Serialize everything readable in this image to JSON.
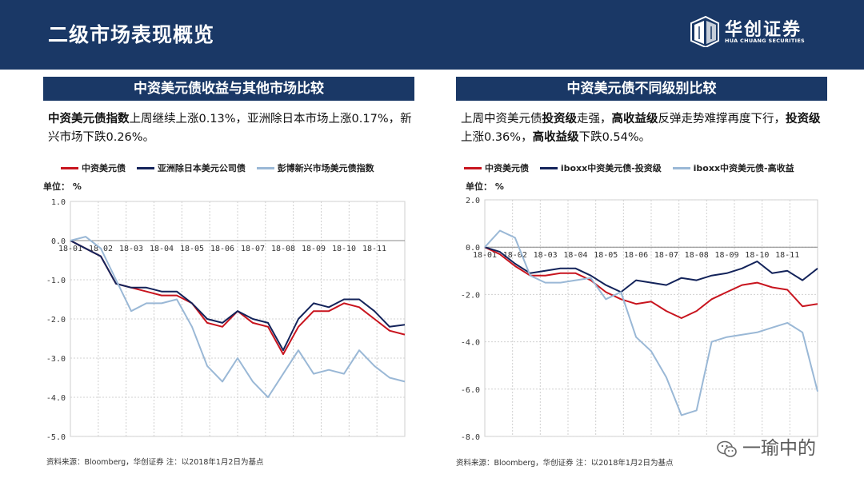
{
  "header": {
    "title": "二级市场表现概览",
    "logo_name": "华创证券",
    "logo_sub": "HUA CHUANG SECURITIES"
  },
  "left_panel": {
    "banner": "中资美元债收益与其他市场比较",
    "desc_b1": "中资美元债指数",
    "desc_t1": "上周继续上涨0.13%，亚洲除日本市场上涨0.17%，新兴市场下跌0.26%。",
    "unit": "单位： %",
    "source": "资料来源：Bloomberg，华创证券   注：以2018年1月2日为基点"
  },
  "right_panel": {
    "banner": "中资美元债不同级别比较",
    "desc_t1": "上周中资美元债",
    "desc_b1": "投资级",
    "desc_t2": "走强，",
    "desc_b2": "高收益级",
    "desc_t3": "反弹走势难撑再度下行，",
    "desc_b3": "投资级",
    "desc_t4": "上涨0.36%，",
    "desc_b4": "高收益级",
    "desc_t5": "下跌0.54%。",
    "unit": "单位： %",
    "source": "资料来源：Bloomberg，华创证券   注：以2018年1月2日为基点"
  },
  "watermark": "一瑜中的",
  "colors": {
    "navy": "#1a3866",
    "red": "#c8141e",
    "dark_navy": "#13235a",
    "light_blue": "#9ab8d6",
    "grid": "#d0d0d0"
  },
  "chart_data": [
    {
      "type": "line",
      "title": "中资美元债收益与其他市场比较",
      "ylabel": "单位： %",
      "ylim": [
        -5.0,
        1.0
      ],
      "yticks": [
        "1.0",
        "0.0",
        "-1.0",
        "-2.0",
        "-3.0",
        "-4.0",
        "-5.0"
      ],
      "xticks": [
        "18-01",
        "18-02",
        "18-03",
        "18-04",
        "18-05",
        "18-06",
        "18-07",
        "18-08",
        "18-09",
        "18-10",
        "18-11"
      ],
      "grid": true,
      "legend": "top",
      "x": [
        0,
        0.5,
        1.0,
        1.5,
        2.0,
        2.5,
        3.0,
        3.5,
        4.0,
        4.5,
        5.0,
        5.5,
        6.0,
        6.5,
        7.0,
        7.5,
        8.0,
        8.5,
        9.0,
        9.5,
        10.0,
        10.5,
        11.0
      ],
      "series": [
        {
          "name": "中资美元债",
          "color": "#c8141e",
          "values": [
            0.0,
            -0.2,
            -0.4,
            -1.1,
            -1.2,
            -1.3,
            -1.4,
            -1.4,
            -1.6,
            -2.1,
            -2.2,
            -1.8,
            -2.1,
            -2.2,
            -2.9,
            -2.2,
            -1.8,
            -1.8,
            -1.6,
            -1.7,
            -2.0,
            -2.3,
            -2.4
          ]
        },
        {
          "name": "亚洲除日本美元公司债",
          "color": "#13235a",
          "values": [
            0.0,
            -0.2,
            -0.4,
            -1.1,
            -1.2,
            -1.2,
            -1.3,
            -1.3,
            -1.6,
            -2.0,
            -2.1,
            -1.8,
            -2.0,
            -2.1,
            -2.8,
            -2.0,
            -1.6,
            -1.7,
            -1.5,
            -1.5,
            -1.8,
            -2.2,
            -2.15
          ]
        },
        {
          "name": "彭博新兴市场美元债指数",
          "color": "#9ab8d6",
          "values": [
            0.0,
            0.1,
            -0.2,
            -1.0,
            -1.8,
            -1.6,
            -1.6,
            -1.5,
            -2.2,
            -3.2,
            -3.6,
            -3.0,
            -3.6,
            -4.0,
            -3.4,
            -2.8,
            -3.4,
            -3.3,
            -3.4,
            -2.8,
            -3.2,
            -3.5,
            -3.6
          ]
        }
      ]
    },
    {
      "type": "line",
      "title": "中资美元债不同级别比较",
      "ylabel": "单位： %",
      "ylim": [
        -8.0,
        2.0
      ],
      "yticks": [
        "2.0",
        "0.0",
        "-2.0",
        "-4.0",
        "-6.0",
        "-8.0"
      ],
      "xticks": [
        "18-01",
        "18-02",
        "18-03",
        "18-04",
        "18-05",
        "18-06",
        "18-07",
        "18-08",
        "18-09",
        "18-10",
        "18-11"
      ],
      "grid": true,
      "legend": "top",
      "x": [
        0,
        0.5,
        1.0,
        1.5,
        2.0,
        2.5,
        3.0,
        3.5,
        4.0,
        4.5,
        5.0,
        5.5,
        6.0,
        6.5,
        7.0,
        7.5,
        8.0,
        8.5,
        9.0,
        9.5,
        10.0,
        10.5,
        11.0
      ],
      "series": [
        {
          "name": "中资美元债",
          "color": "#c8141e",
          "values": [
            0.0,
            -0.3,
            -0.8,
            -1.2,
            -1.2,
            -1.1,
            -1.1,
            -1.4,
            -1.9,
            -2.2,
            -2.4,
            -2.3,
            -2.7,
            -3.0,
            -2.7,
            -2.2,
            -1.9,
            -1.6,
            -1.5,
            -1.7,
            -1.8,
            -2.5,
            -2.4
          ]
        },
        {
          "name": "iboxx中资美元债-投资级",
          "color": "#13235a",
          "values": [
            0.0,
            -0.2,
            -0.7,
            -1.1,
            -1.0,
            -0.9,
            -0.9,
            -1.2,
            -1.6,
            -1.9,
            -1.4,
            -1.5,
            -1.6,
            -1.3,
            -1.4,
            -1.2,
            -1.1,
            -0.9,
            -0.6,
            -1.1,
            -1.0,
            -1.4,
            -0.9
          ]
        },
        {
          "name": "iboxx中资美元债-高收益",
          "color": "#9ab8d6",
          "values": [
            0.0,
            0.7,
            0.4,
            -1.2,
            -1.5,
            -1.5,
            -1.4,
            -1.3,
            -2.2,
            -1.9,
            -3.8,
            -4.4,
            -5.5,
            -7.1,
            -6.9,
            -4.0,
            -3.8,
            -3.7,
            -3.6,
            -3.4,
            -3.2,
            -3.6,
            -6.1
          ]
        }
      ]
    }
  ]
}
